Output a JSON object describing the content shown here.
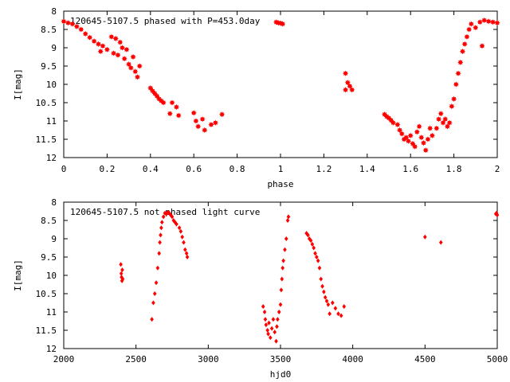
{
  "chart_data": [
    {
      "type": "scatter",
      "title": "120645-5107.5 phased with P=453.0day",
      "xlabel": "phase",
      "ylabel": "I[mag]",
      "xlim": [
        0,
        2
      ],
      "ylim": [
        8,
        12
      ],
      "y_inverted": true,
      "grid": false,
      "marker": "filled-star",
      "marker_color": "#ff0000",
      "xticks": [
        0,
        0.2,
        0.4,
        0.6,
        0.8,
        1,
        1.2,
        1.4,
        1.6,
        1.8,
        2
      ],
      "xtick_labels": [
        "0",
        "0.2",
        "0.4",
        "0.6",
        "0.8",
        "1",
        "1.2",
        "1.4",
        "1.6",
        "1.8",
        "2"
      ],
      "yticks": [
        8,
        8.5,
        9,
        9.5,
        10,
        10.5,
        11,
        11.5,
        12
      ],
      "ytick_labels": [
        "8",
        "8.5",
        "9",
        "9.5",
        "10",
        "10.5",
        "11",
        "11.5",
        "12"
      ],
      "series": [
        {
          "points": [
            [
              0.0,
              8.28
            ],
            [
              0.02,
              8.32
            ],
            [
              0.04,
              8.35
            ],
            [
              0.06,
              8.42
            ],
            [
              0.08,
              8.5
            ],
            [
              0.1,
              8.62
            ],
            [
              0.12,
              8.72
            ],
            [
              0.14,
              8.82
            ],
            [
              0.16,
              8.9
            ],
            [
              0.17,
              9.1
            ],
            [
              0.18,
              8.95
            ],
            [
              0.2,
              9.05
            ],
            [
              0.22,
              8.7
            ],
            [
              0.23,
              9.15
            ],
            [
              0.24,
              8.75
            ],
            [
              0.25,
              9.2
            ],
            [
              0.26,
              8.85
            ],
            [
              0.28,
              9.3
            ],
            [
              0.27,
              9.0
            ],
            [
              0.29,
              9.05
            ],
            [
              0.3,
              9.45
            ],
            [
              0.31,
              9.55
            ],
            [
              0.32,
              9.25
            ],
            [
              0.33,
              9.65
            ],
            [
              0.34,
              9.8
            ],
            [
              0.35,
              9.5
            ],
            [
              0.4,
              10.1
            ],
            [
              0.41,
              10.18
            ],
            [
              0.42,
              10.25
            ],
            [
              0.43,
              10.32
            ],
            [
              0.44,
              10.4
            ],
            [
              0.45,
              10.45
            ],
            [
              0.46,
              10.5
            ],
            [
              0.49,
              10.8
            ],
            [
              0.5,
              10.5
            ],
            [
              0.52,
              10.62
            ],
            [
              0.53,
              10.85
            ],
            [
              0.6,
              10.78
            ],
            [
              0.61,
              11.0
            ],
            [
              0.62,
              11.15
            ],
            [
              0.64,
              10.95
            ],
            [
              0.65,
              11.25
            ],
            [
              0.68,
              11.1
            ],
            [
              0.7,
              11.05
            ],
            [
              0.73,
              10.82
            ],
            [
              0.98,
              8.3
            ],
            [
              0.99,
              8.32
            ],
            [
              1.0,
              8.33
            ],
            [
              1.01,
              8.35
            ],
            [
              1.3,
              9.7
            ],
            [
              1.3,
              10.15
            ],
            [
              1.31,
              9.95
            ],
            [
              1.32,
              10.05
            ],
            [
              1.33,
              10.15
            ],
            [
              1.48,
              10.82
            ],
            [
              1.49,
              10.88
            ],
            [
              1.5,
              10.92
            ],
            [
              1.51,
              10.98
            ],
            [
              1.52,
              11.05
            ],
            [
              1.54,
              11.1
            ],
            [
              1.55,
              11.25
            ],
            [
              1.56,
              11.35
            ],
            [
              1.57,
              11.5
            ],
            [
              1.58,
              11.45
            ],
            [
              1.59,
              11.55
            ],
            [
              1.6,
              11.4
            ],
            [
              1.61,
              11.62
            ],
            [
              1.62,
              11.7
            ],
            [
              1.63,
              11.3
            ],
            [
              1.64,
              11.15
            ],
            [
              1.65,
              11.45
            ],
            [
              1.66,
              11.6
            ],
            [
              1.67,
              11.8
            ],
            [
              1.68,
              11.5
            ],
            [
              1.69,
              11.2
            ],
            [
              1.7,
              11.4
            ],
            [
              1.72,
              11.2
            ],
            [
              1.73,
              10.95
            ],
            [
              1.74,
              10.8
            ],
            [
              1.75,
              11.05
            ],
            [
              1.76,
              10.95
            ],
            [
              1.77,
              11.15
            ],
            [
              1.78,
              11.05
            ],
            [
              1.79,
              10.6
            ],
            [
              1.8,
              10.4
            ],
            [
              1.81,
              10.0
            ],
            [
              1.82,
              9.7
            ],
            [
              1.83,
              9.4
            ],
            [
              1.84,
              9.1
            ],
            [
              1.85,
              8.9
            ],
            [
              1.86,
              8.7
            ],
            [
              1.87,
              8.5
            ],
            [
              1.88,
              8.35
            ],
            [
              1.9,
              8.45
            ],
            [
              1.92,
              8.3
            ],
            [
              1.93,
              8.95
            ],
            [
              1.94,
              8.25
            ],
            [
              1.96,
              8.28
            ],
            [
              1.98,
              8.3
            ],
            [
              2.0,
              8.32
            ]
          ]
        }
      ]
    },
    {
      "type": "scatter",
      "title": "120645-5107.5 not phased light curve",
      "xlabel": "hjd0",
      "ylabel": "I[mag]",
      "xlim": [
        2000,
        5000
      ],
      "ylim": [
        8,
        12
      ],
      "y_inverted": true,
      "grid": false,
      "marker": "filled-diamond",
      "marker_color": "#ff0000",
      "xticks": [
        2000,
        2500,
        3000,
        3500,
        4000,
        4500,
        5000
      ],
      "xtick_labels": [
        "2000",
        "2500",
        "3000",
        "3500",
        "4000",
        "4500",
        "5000"
      ],
      "yticks": [
        8,
        8.5,
        9,
        9.5,
        10,
        10.5,
        11,
        11.5,
        12
      ],
      "ytick_labels": [
        "8",
        "8.5",
        "9",
        "9.5",
        "10",
        "10.5",
        "11",
        "11.5",
        "12"
      ],
      "series": [
        {
          "points": [
            [
              2395,
              9.7
            ],
            [
              2398,
              9.95
            ],
            [
              2400,
              10.05
            ],
            [
              2403,
              10.15
            ],
            [
              2405,
              9.85
            ],
            [
              2408,
              10.1
            ],
            [
              2610,
              11.2
            ],
            [
              2620,
              10.75
            ],
            [
              2630,
              10.5
            ],
            [
              2640,
              10.2
            ],
            [
              2650,
              9.8
            ],
            [
              2660,
              9.4
            ],
            [
              2665,
              9.1
            ],
            [
              2670,
              8.9
            ],
            [
              2675,
              8.7
            ],
            [
              2680,
              8.55
            ],
            [
              2690,
              8.4
            ],
            [
              2700,
              8.3
            ],
            [
              2710,
              8.32
            ],
            [
              2720,
              8.28
            ],
            [
              2730,
              8.3
            ],
            [
              2740,
              8.35
            ],
            [
              2750,
              8.4
            ],
            [
              2760,
              8.5
            ],
            [
              2770,
              8.55
            ],
            [
              2780,
              8.6
            ],
            [
              2800,
              8.7
            ],
            [
              2810,
              8.8
            ],
            [
              2820,
              8.95
            ],
            [
              2830,
              9.1
            ],
            [
              2840,
              9.3
            ],
            [
              2850,
              9.4
            ],
            [
              2855,
              9.5
            ],
            [
              3380,
              10.85
            ],
            [
              3390,
              11.0
            ],
            [
              3395,
              11.2
            ],
            [
              3400,
              11.35
            ],
            [
              3410,
              11.5
            ],
            [
              3415,
              11.6
            ],
            [
              3420,
              11.3
            ],
            [
              3430,
              11.7
            ],
            [
              3440,
              11.45
            ],
            [
              3450,
              11.2
            ],
            [
              3460,
              11.55
            ],
            [
              3470,
              11.8
            ],
            [
              3475,
              11.4
            ],
            [
              3480,
              11.2
            ],
            [
              3490,
              11.0
            ],
            [
              3500,
              10.8
            ],
            [
              3505,
              10.4
            ],
            [
              3510,
              10.1
            ],
            [
              3515,
              9.8
            ],
            [
              3520,
              9.6
            ],
            [
              3530,
              9.3
            ],
            [
              3540,
              9.0
            ],
            [
              3550,
              8.5
            ],
            [
              3555,
              8.4
            ],
            [
              3680,
              8.85
            ],
            [
              3690,
              8.9
            ],
            [
              3700,
              9.0
            ],
            [
              3710,
              9.05
            ],
            [
              3720,
              9.15
            ],
            [
              3730,
              9.25
            ],
            [
              3740,
              9.4
            ],
            [
              3750,
              9.5
            ],
            [
              3760,
              9.6
            ],
            [
              3770,
              9.8
            ],
            [
              3780,
              10.1
            ],
            [
              3790,
              10.3
            ],
            [
              3800,
              10.45
            ],
            [
              3810,
              10.6
            ],
            [
              3820,
              10.7
            ],
            [
              3830,
              10.8
            ],
            [
              3840,
              11.05
            ],
            [
              3860,
              10.75
            ],
            [
              3880,
              10.9
            ],
            [
              3900,
              11.05
            ],
            [
              3920,
              11.1
            ],
            [
              3940,
              10.85
            ],
            [
              4500,
              8.95
            ],
            [
              4610,
              9.1
            ],
            [
              4990,
              8.32
            ],
            [
              4995,
              8.3
            ],
            [
              5000,
              8.35
            ]
          ]
        }
      ]
    }
  ]
}
